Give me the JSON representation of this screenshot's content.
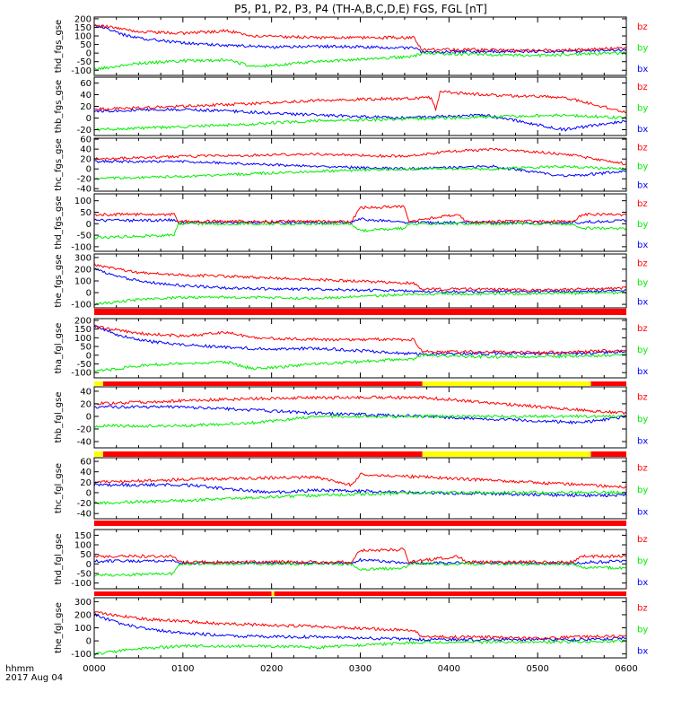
{
  "title": "P5, P1, P2, P3, P4 (TH-A,B,C,D,E) FGS, FGL [nT]",
  "xaxis": {
    "tick_labels": [
      "0000",
      "0100",
      "0200",
      "0300",
      "0400",
      "0500",
      "0600"
    ],
    "label_line1": "hhmm",
    "label_line2": "2017 Aug 04",
    "range_hours": [
      0,
      6
    ]
  },
  "legend": [
    "bz",
    "by",
    "bx"
  ],
  "colors": {
    "bx": "#0000ff",
    "by": "#00ee00",
    "bz": "#ff0000",
    "axis": "#000000",
    "bar_red": "#ff0000",
    "bar_yellow": "#ffff00"
  },
  "chart_data": [
    {
      "type": "line",
      "ylabel": "thd_fgs_gse",
      "ylim": [
        -130,
        210
      ],
      "yticks": [
        -100,
        -50,
        0,
        50,
        100,
        150,
        200
      ],
      "series": [
        {
          "name": "bz",
          "x": [
            0,
            0.5,
            1,
            1.5,
            1.8,
            2.5,
            3.6,
            3.7,
            4.4,
            4.5,
            5.0,
            5.5,
            6.0
          ],
          "values": [
            165,
            125,
            115,
            130,
            100,
            90,
            90,
            20,
            20,
            18,
            15,
            20,
            30
          ]
        },
        {
          "name": "by",
          "x": [
            0,
            0.5,
            1,
            1.5,
            1.8,
            2.5,
            3.6,
            3.7,
            4.5,
            5.0,
            5.5,
            6.0
          ],
          "values": [
            -95,
            -60,
            -45,
            -40,
            -80,
            -50,
            -20,
            0,
            -10,
            -15,
            -5,
            0
          ]
        },
        {
          "name": "bx",
          "x": [
            0,
            0.3,
            0.6,
            1.0,
            1.5,
            2.0,
            2.5,
            3.6,
            3.7,
            4.5,
            5.5,
            6.0
          ],
          "values": [
            170,
            110,
            80,
            60,
            45,
            35,
            40,
            30,
            5,
            10,
            10,
            20
          ]
        }
      ]
    },
    {
      "type": "line",
      "ylabel": "thb_fgs_gse",
      "ylim": [
        -30,
        70
      ],
      "yticks": [
        -20,
        0,
        20,
        40,
        60
      ],
      "series": [
        {
          "name": "bz",
          "x": [
            0,
            1,
            1.8,
            2.5,
            3.8,
            3.85,
            3.9,
            4.4,
            5.3,
            6.0
          ],
          "values": [
            15,
            20,
            25,
            30,
            35,
            15,
            45,
            40,
            35,
            10
          ]
        },
        {
          "name": "by",
          "x": [
            0,
            1,
            1.8,
            2.5,
            4.0,
            5.3,
            6.0
          ],
          "values": [
            -20,
            -15,
            -10,
            -5,
            0,
            5,
            0
          ]
        },
        {
          "name": "bx",
          "x": [
            0,
            1,
            1.8,
            2.5,
            3.5,
            4.4,
            5.3,
            6.0
          ],
          "values": [
            12,
            15,
            10,
            5,
            0,
            5,
            -20,
            -5
          ]
        }
      ]
    },
    {
      "type": "line",
      "ylabel": "thc_fgs_gse",
      "ylim": [
        -45,
        62
      ],
      "yticks": [
        -40,
        -20,
        0,
        20,
        40,
        60
      ],
      "series": [
        {
          "name": "bz",
          "x": [
            0,
            1,
            2.5,
            3.5,
            4.0,
            4.5,
            5.3,
            6.0
          ],
          "values": [
            20,
            25,
            30,
            25,
            35,
            40,
            30,
            10
          ]
        },
        {
          "name": "by",
          "x": [
            0,
            1,
            2.5,
            3.5,
            4.5,
            5.3,
            6.0
          ],
          "values": [
            -20,
            -15,
            -5,
            0,
            0,
            5,
            0
          ]
        },
        {
          "name": "bx",
          "x": [
            0,
            1,
            2.5,
            3.5,
            4.5,
            5.3,
            6.0
          ],
          "values": [
            15,
            15,
            5,
            0,
            5,
            -15,
            -5
          ]
        }
      ]
    },
    {
      "type": "line",
      "ylabel": "thd_fgs_gse",
      "ylim": [
        -120,
        130
      ],
      "yticks": [
        -100,
        -50,
        0,
        50,
        100
      ],
      "series": [
        {
          "name": "bz",
          "x": [
            0,
            0.9,
            0.95,
            2.9,
            3.0,
            3.5,
            3.55,
            4.1,
            4.2,
            5.4,
            5.5,
            6.0
          ],
          "values": [
            40,
            40,
            10,
            10,
            70,
            75,
            10,
            40,
            10,
            10,
            40,
            40
          ]
        },
        {
          "name": "by",
          "x": [
            0,
            0.9,
            0.95,
            2.9,
            3.0,
            3.5,
            3.55,
            5.4,
            5.5,
            6.0
          ],
          "values": [
            -60,
            -50,
            0,
            0,
            -30,
            -20,
            0,
            0,
            -20,
            -20
          ]
        },
        {
          "name": "bx",
          "x": [
            0,
            0.9,
            0.95,
            2.9,
            3.0,
            3.55,
            5.4,
            6.0
          ],
          "values": [
            15,
            15,
            5,
            5,
            20,
            5,
            5,
            15
          ]
        }
      ]
    },
    {
      "type": "line",
      "ylabel": "the_fgs_gse",
      "ylim": [
        -130,
        330
      ],
      "yticks": [
        -100,
        0,
        100,
        200,
        300
      ],
      "series": [
        {
          "name": "bz",
          "x": [
            0,
            0.5,
            1,
            1.5,
            2.5,
            3.6,
            3.7,
            4.4,
            5.0,
            5.5,
            6.0
          ],
          "values": [
            240,
            170,
            150,
            140,
            110,
            80,
            30,
            30,
            20,
            30,
            40
          ]
        },
        {
          "name": "by",
          "x": [
            0,
            0.5,
            1,
            1.8,
            2.5,
            3.7,
            4.5,
            5.5,
            6.0
          ],
          "values": [
            -100,
            -60,
            -40,
            -40,
            -50,
            -10,
            -10,
            -5,
            0
          ]
        },
        {
          "name": "bx",
          "x": [
            0,
            0.3,
            0.6,
            1.0,
            1.5,
            2.0,
            2.5,
            3.7,
            5.5,
            6.0
          ],
          "values": [
            200,
            130,
            90,
            60,
            40,
            30,
            30,
            10,
            10,
            20
          ]
        }
      ]
    },
    {
      "type": "line",
      "ylabel": "tha_fgl_gse",
      "ylim": [
        -130,
        210
      ],
      "yticks": [
        -100,
        -50,
        0,
        50,
        100,
        150,
        200
      ],
      "series": [
        {
          "name": "bz",
          "x": [
            0,
            0.5,
            1,
            1.5,
            1.8,
            2.5,
            3.6,
            3.7,
            4.4,
            5.0,
            5.5,
            6.0
          ],
          "values": [
            165,
            125,
            110,
            130,
            100,
            90,
            90,
            20,
            20,
            15,
            20,
            30
          ]
        },
        {
          "name": "by",
          "x": [
            0,
            0.5,
            1,
            1.5,
            1.8,
            2.5,
            3.6,
            3.7,
            4.5,
            5.5,
            6.0
          ],
          "values": [
            -95,
            -60,
            -45,
            -40,
            -80,
            -50,
            -20,
            0,
            -10,
            -5,
            0
          ]
        },
        {
          "name": "bx",
          "x": [
            0,
            0.3,
            0.6,
            1.0,
            1.5,
            2.0,
            2.5,
            3.7,
            4.5,
            5.5,
            6.0
          ],
          "values": [
            170,
            110,
            80,
            60,
            45,
            35,
            40,
            5,
            10,
            10,
            20
          ]
        }
      ]
    },
    {
      "type": "line",
      "ylabel": "thb_fgl_gse",
      "ylim": [
        -50,
        47
      ],
      "yticks": [
        -40,
        -20,
        0,
        20,
        40
      ],
      "series": [
        {
          "name": "bz",
          "x": [
            0,
            1,
            1.8,
            2.5,
            3.7,
            5.5,
            6.0
          ],
          "values": [
            20,
            25,
            28,
            30,
            30,
            10,
            5
          ]
        },
        {
          "name": "by",
          "x": [
            0,
            1,
            1.8,
            2.5,
            3.7,
            5.5,
            6.0
          ],
          "values": [
            -15,
            -15,
            -10,
            0,
            0,
            0,
            0
          ]
        },
        {
          "name": "bx",
          "x": [
            0,
            1,
            1.8,
            2.5,
            3.7,
            5.5,
            6.0
          ],
          "values": [
            15,
            15,
            10,
            5,
            0,
            -10,
            0
          ]
        }
      ]
    },
    {
      "type": "line",
      "ylabel": "thc_fgl_gse",
      "ylim": [
        -50,
        67
      ],
      "yticks": [
        -40,
        -20,
        0,
        20,
        40,
        60
      ],
      "series": [
        {
          "name": "bz",
          "x": [
            0,
            1,
            2.5,
            2.9,
            3.0,
            3.7,
            5.5,
            6.0
          ],
          "values": [
            20,
            25,
            30,
            15,
            35,
            30,
            15,
            10
          ]
        },
        {
          "name": "by",
          "x": [
            0,
            1,
            2.5,
            3.7,
            5.5,
            6.0
          ],
          "values": [
            -20,
            -15,
            -5,
            0,
            0,
            0
          ]
        },
        {
          "name": "bx",
          "x": [
            0,
            1,
            2.0,
            2.5,
            3.7,
            5.5,
            6.0
          ],
          "values": [
            15,
            15,
            0,
            5,
            0,
            -5,
            -5
          ]
        }
      ]
    },
    {
      "type": "line",
      "ylabel": "thd_fgl_gse",
      "ylim": [
        -130,
        180
      ],
      "yticks": [
        -100,
        -50,
        0,
        50,
        100,
        150
      ],
      "series": [
        {
          "name": "bz",
          "x": [
            0,
            0.9,
            0.95,
            2.9,
            3.0,
            3.5,
            3.55,
            4.1,
            4.2,
            5.4,
            5.5,
            6.0
          ],
          "values": [
            40,
            40,
            10,
            10,
            70,
            75,
            10,
            40,
            10,
            10,
            40,
            40
          ]
        },
        {
          "name": "by",
          "x": [
            0,
            0.9,
            0.95,
            2.9,
            3.0,
            3.5,
            3.55,
            5.4,
            5.5,
            6.0
          ],
          "values": [
            -60,
            -50,
            0,
            0,
            -30,
            -20,
            0,
            0,
            -20,
            -20
          ]
        },
        {
          "name": "bx",
          "x": [
            0,
            0.9,
            0.95,
            2.9,
            3.0,
            3.55,
            5.4,
            6.0
          ],
          "values": [
            15,
            15,
            5,
            5,
            20,
            5,
            5,
            15
          ]
        }
      ]
    },
    {
      "type": "line",
      "ylabel": "the_fgl_gse",
      "ylim": [
        -130,
        330
      ],
      "yticks": [
        -100,
        0,
        100,
        200,
        300
      ],
      "series": [
        {
          "name": "bz",
          "x": [
            0,
            0.5,
            1,
            1.5,
            2.5,
            3.6,
            3.7,
            4.4,
            5.0,
            5.5,
            6.0
          ],
          "values": [
            220,
            170,
            150,
            130,
            110,
            80,
            30,
            30,
            20,
            30,
            40
          ]
        },
        {
          "name": "by",
          "x": [
            0,
            0.5,
            1,
            1.8,
            2.5,
            3.7,
            4.5,
            5.5,
            6.0
          ],
          "values": [
            -100,
            -60,
            -40,
            -40,
            -50,
            -10,
            -10,
            -5,
            0
          ]
        },
        {
          "name": "bx",
          "x": [
            0,
            0.3,
            0.6,
            1.0,
            1.5,
            2.0,
            2.5,
            3.7,
            5.5,
            6.0
          ],
          "values": [
            200,
            130,
            90,
            60,
            40,
            30,
            30,
            10,
            10,
            20
          ]
        }
      ]
    }
  ],
  "mode_bars": [
    {
      "after_panel": 4,
      "segments": [
        {
          "x": [
            0,
            6
          ],
          "color": "red"
        }
      ]
    },
    {
      "after_panel": 5,
      "segments": [
        {
          "x": [
            0,
            0.1
          ],
          "color": "yellow"
        },
        {
          "x": [
            0.1,
            3.7
          ],
          "color": "red"
        },
        {
          "x": [
            3.7,
            5.6
          ],
          "color": "yellow"
        },
        {
          "x": [
            5.6,
            6
          ],
          "color": "red"
        }
      ]
    },
    {
      "after_panel": 6,
      "segments": [
        {
          "x": [
            0,
            0.1
          ],
          "color": "yellow"
        },
        {
          "x": [
            0.1,
            3.7
          ],
          "color": "red"
        },
        {
          "x": [
            3.7,
            5.6
          ],
          "color": "yellow"
        },
        {
          "x": [
            5.6,
            6
          ],
          "color": "red"
        }
      ]
    },
    {
      "after_panel": 7,
      "segments": [
        {
          "x": [
            0,
            6
          ],
          "color": "red"
        }
      ]
    },
    {
      "after_panel": 8,
      "segments": [
        {
          "x": [
            0,
            2.0
          ],
          "color": "red"
        },
        {
          "x": [
            2.0,
            2.03
          ],
          "color": "yellow"
        },
        {
          "x": [
            2.03,
            6
          ],
          "color": "red"
        }
      ]
    }
  ]
}
